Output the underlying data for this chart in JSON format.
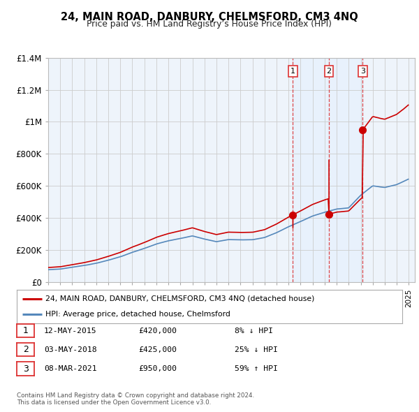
{
  "title": "24, MAIN ROAD, DANBURY, CHELMSFORD, CM3 4NQ",
  "subtitle": "Price paid vs. HM Land Registry’s House Price Index (HPI)",
  "footer1": "Contains HM Land Registry data © Crown copyright and database right 2024.",
  "footer2": "This data is licensed under the Open Government Licence v3.0.",
  "legend_line1": "24, MAIN ROAD, DANBURY, CHELMSFORD, CM3 4NQ (detached house)",
  "legend_line2": "HPI: Average price, detached house, Chelmsford",
  "xlim_start": 1995.0,
  "xlim_end": 2025.5,
  "ylim": [
    0,
    1400000
  ],
  "yticks": [
    0,
    200000,
    400000,
    600000,
    800000,
    1000000,
    1200000,
    1400000
  ],
  "ytick_labels": [
    "£0",
    "£200K",
    "£400K",
    "£600K",
    "£800K",
    "£1M",
    "£1.2M",
    "£1.4M"
  ],
  "sale_dates": [
    2015.36,
    2018.36,
    2021.17
  ],
  "sale_prices": [
    420000,
    425000,
    950000
  ],
  "sale_labels": [
    "1",
    "2",
    "3"
  ],
  "table_rows": [
    [
      "1",
      "12-MAY-2015",
      "£420,000",
      "8% ↓ HPI"
    ],
    [
      "2",
      "03-MAY-2018",
      "£425,000",
      "25% ↓ HPI"
    ],
    [
      "3",
      "08-MAR-2021",
      "£950,000",
      "59% ↑ HPI"
    ]
  ],
  "red_color": "#cc0000",
  "blue_color": "#5588bb",
  "vline_color": "#dd3333",
  "shade_color": "#ddeeff",
  "bg_color": "#ffffff",
  "grid_color": "#cccccc",
  "plot_bg": "#eef4fb"
}
